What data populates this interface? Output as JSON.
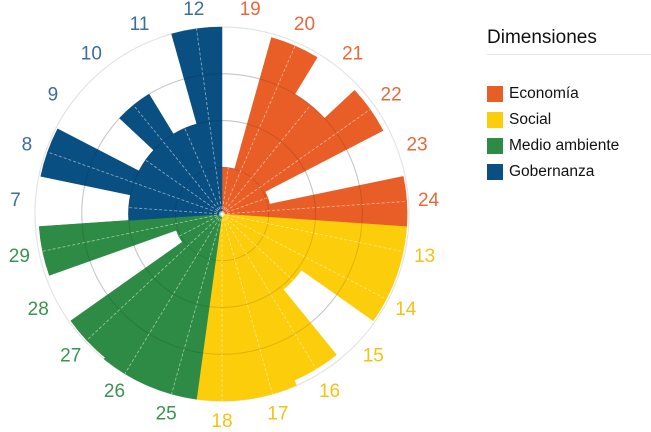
{
  "chart_data": {
    "type": "polar-bar",
    "title": "",
    "legend_title": "Dimensiones",
    "legend_position": "right",
    "grid": true,
    "rlim": [
      0,
      100
    ],
    "grid_rings": [
      25,
      50,
      75,
      100
    ],
    "start_angle_deg": 0,
    "direction": "clockwise",
    "series": [
      {
        "name": "Economía",
        "color": "#e95e27",
        "label_color": "#e8683a",
        "categories": [
          "19",
          "20",
          "21",
          "22",
          "23",
          "24"
        ],
        "values": [
          25,
          98,
          75,
          97,
          26,
          99
        ]
      },
      {
        "name": "Social",
        "color": "#fccd0a",
        "label_color": "#f2c313",
        "categories": [
          "13",
          "14",
          "15",
          "16",
          "17",
          "18"
        ],
        "values": [
          99,
          99,
          52,
          97,
          100,
          100
        ]
      },
      {
        "name": "Medio ambiente",
        "color": "#2e8b45",
        "label_color": "#3a9350",
        "categories": [
          "25",
          "26",
          "27",
          "28",
          "29"
        ],
        "values": [
          100,
          100,
          99,
          26,
          98
        ]
      },
      {
        "name": "Gobernanza",
        "color": "#0a4f82",
        "label_color": "#3d6e9b",
        "categories": [
          "7",
          "8",
          "9",
          "10",
          "11",
          "12"
        ],
        "values": [
          50,
          99,
          50,
          75,
          50,
          100
        ]
      }
    ]
  },
  "legend": {
    "title": "Dimensiones",
    "items": [
      {
        "label": "Economía",
        "color": "#e95e27"
      },
      {
        "label": "Social",
        "color": "#fccd0a"
      },
      {
        "label": "Medio ambiente",
        "color": "#2e8b45"
      },
      {
        "label": "Gobernanza",
        "color": "#0a4f82"
      }
    ]
  }
}
